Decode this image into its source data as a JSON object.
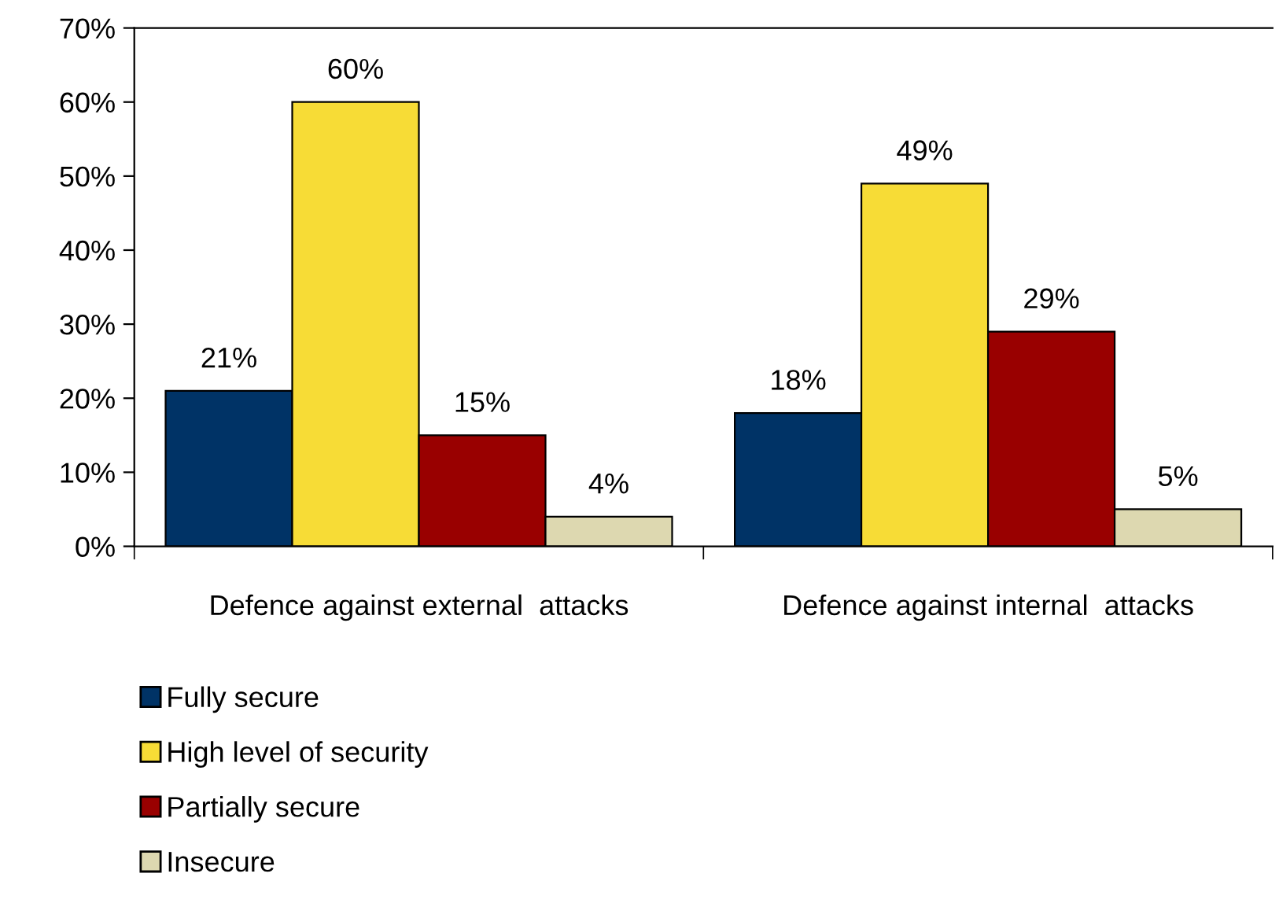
{
  "chart_data": {
    "type": "bar",
    "categories": [
      "Defence against external  attacks",
      "Defence against internal  attacks"
    ],
    "series": [
      {
        "name": "Fully secure",
        "color": "#003366",
        "values": [
          21,
          18
        ],
        "value_labels": [
          "21%",
          "18%"
        ]
      },
      {
        "name": "High level of security",
        "color": "#f7dc36",
        "values": [
          60,
          49
        ],
        "value_labels": [
          "60%",
          "49%"
        ]
      },
      {
        "name": "Partially secure",
        "color": "#990000",
        "values": [
          15,
          29
        ],
        "value_labels": [
          "15%",
          "29%"
        ]
      },
      {
        "name": "Insecure",
        "color": "#ddd8b0",
        "values": [
          4,
          5
        ],
        "value_labels": [
          "4%",
          "5%"
        ]
      }
    ],
    "ylim": [
      0,
      70
    ],
    "yticks": [
      {
        "value": 0,
        "label": "0%"
      },
      {
        "value": 10,
        "label": "10%"
      },
      {
        "value": 20,
        "label": "20%"
      },
      {
        "value": 30,
        "label": "30%"
      },
      {
        "value": 40,
        "label": "40%"
      },
      {
        "value": 50,
        "label": "50%"
      },
      {
        "value": 60,
        "label": "60%"
      },
      {
        "value": 70,
        "label": "70%"
      }
    ],
    "grid": false,
    "legend": "bottom left"
  }
}
